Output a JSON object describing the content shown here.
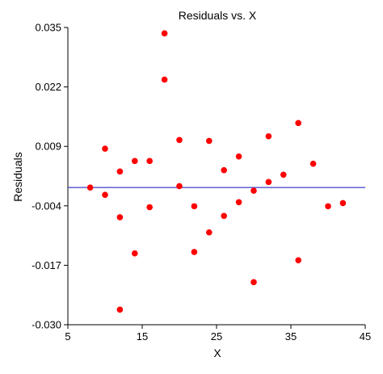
{
  "chart_data": {
    "type": "scatter",
    "title": "Residuals vs. X",
    "xlabel": "X",
    "ylabel": "Residuals",
    "xlim": [
      5,
      45
    ],
    "ylim": [
      -0.03,
      0.035
    ],
    "xticks": [
      "5",
      "15",
      "25",
      "35",
      "45"
    ],
    "xtick_values": [
      5,
      15,
      25,
      35,
      45
    ],
    "yticks": [
      "0.035",
      "0.022",
      "0.009",
      "-0.004",
      "-0.017",
      "-0.030"
    ],
    "ytick_values": [
      0.035,
      0.022,
      0.009,
      -0.004,
      -0.017,
      -0.03
    ],
    "reference_line_y": 0.0,
    "grid": false,
    "colors": {
      "points": "#ff0000",
      "reference_line": "#3d3dc8",
      "axis": "#000000"
    },
    "points": [
      {
        "x": 8,
        "y": 0.0
      },
      {
        "x": 10,
        "y": 0.0085
      },
      {
        "x": 10,
        "y": -0.0016
      },
      {
        "x": 12,
        "y": 0.0035
      },
      {
        "x": 12,
        "y": -0.0065
      },
      {
        "x": 12,
        "y": -0.0267
      },
      {
        "x": 14,
        "y": 0.0058
      },
      {
        "x": 14,
        "y": -0.0144
      },
      {
        "x": 16,
        "y": 0.0058
      },
      {
        "x": 16,
        "y": -0.0043
      },
      {
        "x": 18,
        "y": 0.0337
      },
      {
        "x": 18,
        "y": 0.0236
      },
      {
        "x": 20,
        "y": 0.0104
      },
      {
        "x": 20,
        "y": 0.0003
      },
      {
        "x": 22,
        "y": -0.0041
      },
      {
        "x": 22,
        "y": -0.0141
      },
      {
        "x": 24,
        "y": 0.0102
      },
      {
        "x": 24,
        "y": -0.0098
      },
      {
        "x": 26,
        "y": 0.0038
      },
      {
        "x": 26,
        "y": -0.0062
      },
      {
        "x": 28,
        "y": 0.0068
      },
      {
        "x": 28,
        "y": -0.0032
      },
      {
        "x": 30,
        "y": -0.0007
      },
      {
        "x": 30,
        "y": -0.0207
      },
      {
        "x": 32,
        "y": 0.0112
      },
      {
        "x": 32,
        "y": 0.0012
      },
      {
        "x": 34,
        "y": 0.0028
      },
      {
        "x": 36,
        "y": 0.0141
      },
      {
        "x": 36,
        "y": -0.0159
      },
      {
        "x": 38,
        "y": 0.0052
      },
      {
        "x": 40,
        "y": -0.0041
      },
      {
        "x": 42,
        "y": -0.0034
      }
    ]
  }
}
